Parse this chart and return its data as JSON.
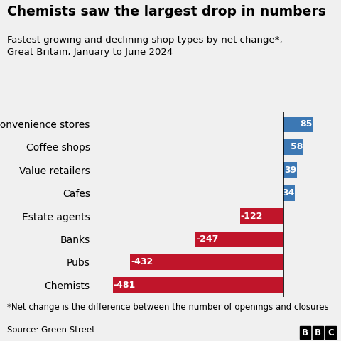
{
  "title": "Chemists saw the largest drop in numbers",
  "subtitle": "Fastest growing and declining shop types by net change*,\nGreat Britain, January to June 2024",
  "footnote": "*Net change is the difference between the number of openings and closures",
  "source": "Source: Green Street",
  "categories": [
    "Convenience stores",
    "Coffee shops",
    "Value retailers",
    "Cafes",
    "Estate agents",
    "Banks",
    "Pubs",
    "Chemists"
  ],
  "values": [
    85,
    58,
    39,
    34,
    -122,
    -247,
    -432,
    -481
  ],
  "bar_colors": [
    "#3c78b4",
    "#3c78b4",
    "#3c78b4",
    "#3c78b4",
    "#c0152a",
    "#c0152a",
    "#c0152a",
    "#c0152a"
  ],
  "background_color": "#f0f0f0",
  "title_fontsize": 13.5,
  "subtitle_fontsize": 9.5,
  "label_fontsize": 10,
  "value_fontsize": 9,
  "footnote_fontsize": 8.5,
  "source_fontsize": 8.5
}
